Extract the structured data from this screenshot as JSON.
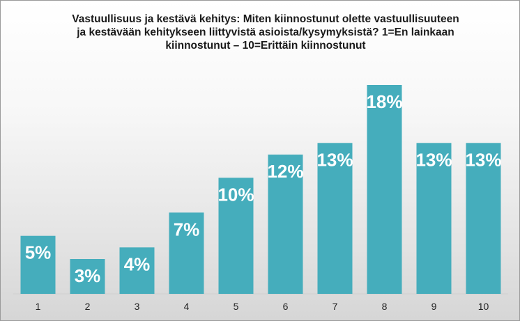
{
  "chart_data": {
    "type": "bar",
    "title_lines": [
      "Vastuullisuus ja kestävä kehitys: Miten kiinnostunut olette vastuullisuuteen",
      "ja kestävään kehitykseen liittyvistä asioista/kysymyksistä?  1=En lainkaan",
      "kiinnostunut – 10=Erittäin kiinnostunut"
    ],
    "categories": [
      "1",
      "2",
      "3",
      "4",
      "5",
      "6",
      "7",
      "8",
      "9",
      "10"
    ],
    "values": [
      5,
      3,
      4,
      7,
      10,
      12,
      13,
      18,
      13,
      13
    ],
    "data_labels": [
      "5%",
      "3%",
      "4%",
      "7%",
      "10%",
      "12%",
      "13%",
      "18%",
      "13%",
      "13%"
    ],
    "unit": "%",
    "ylim": [
      0,
      18
    ],
    "grid": false,
    "legend": "none",
    "bar_color": "#45ADBC"
  }
}
